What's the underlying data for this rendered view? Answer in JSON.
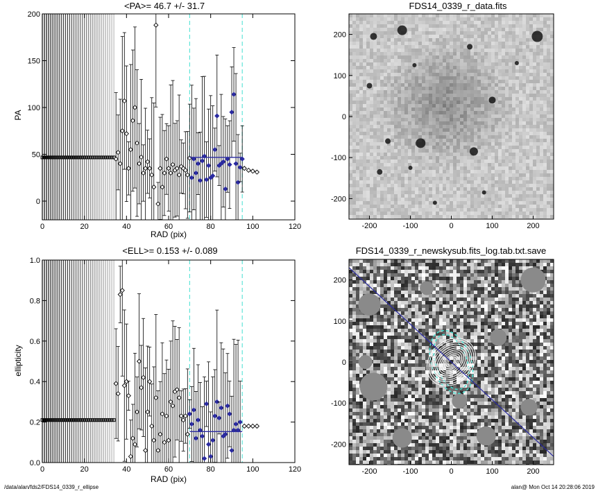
{
  "footer": {
    "left": "/data/alan/fds2/FDS14_0339_r_ellipse",
    "right": "alan@  Mon Oct 14 20:28:06 2019"
  },
  "colors": {
    "data_markers": "#000000",
    "fit_markers": "#2a2aa0",
    "mean_line": "#2a2aa0",
    "range_lines": "#40e0d0",
    "ellipse_outline": "#ffffff"
  },
  "chart_data": [
    {
      "type": "scatter",
      "title": "<PA>=  46.7 +/-  31.7",
      "xlabel": "RAD (pix)",
      "ylabel": "PA",
      "xlim": [
        0,
        120
      ],
      "ylim": [
        -20,
        200
      ],
      "xticks": [
        "0",
        "20",
        "40",
        "60",
        "80",
        "100",
        "120"
      ],
      "yticks": [
        "0",
        "50",
        "100",
        "150",
        "200"
      ],
      "inner_x": [
        0,
        1,
        2,
        3,
        4,
        5,
        6,
        7,
        8,
        9,
        10,
        11,
        12,
        13,
        14,
        15,
        16,
        17,
        18,
        19,
        20,
        21,
        22,
        23,
        24,
        25,
        26,
        27,
        28,
        29,
        30,
        31,
        32,
        33,
        34
      ],
      "inner_value": 46.7,
      "points": [
        {
          "x": 35,
          "y": 45
        },
        {
          "x": 36,
          "y": 52
        },
        {
          "x": 37,
          "y": 40
        },
        {
          "x": 38,
          "y": 75
        },
        {
          "x": 39,
          "y": 107
        },
        {
          "x": 40,
          "y": 72
        },
        {
          "x": 41,
          "y": 35
        },
        {
          "x": 42,
          "y": 55
        },
        {
          "x": 43,
          "y": 86
        },
        {
          "x": 44,
          "y": 100
        },
        {
          "x": 45,
          "y": 62
        },
        {
          "x": 46,
          "y": 40
        },
        {
          "x": 47,
          "y": 47
        },
        {
          "x": 48,
          "y": 30
        },
        {
          "x": 49,
          "y": 35
        },
        {
          "x": 50,
          "y": 42
        },
        {
          "x": 51,
          "y": 35
        },
        {
          "x": 52,
          "y": 28
        },
        {
          "x": 53,
          "y": 15
        },
        {
          "x": 54,
          "y": 188
        },
        {
          "x": 55,
          "y": -3
        },
        {
          "x": 56,
          "y": 35
        },
        {
          "x": 57,
          "y": 15
        },
        {
          "x": 58,
          "y": 30
        },
        {
          "x": 59,
          "y": 45
        },
        {
          "x": 60,
          "y": 35
        },
        {
          "x": 61,
          "y": 30
        },
        {
          "x": 62,
          "y": 39
        },
        {
          "x": 63,
          "y": 33
        },
        {
          "x": 64,
          "y": 35
        },
        {
          "x": 65,
          "y": 28
        },
        {
          "x": 66,
          "y": 37
        },
        {
          "x": 67,
          "y": 35
        },
        {
          "x": 68,
          "y": 33
        },
        {
          "x": 69,
          "y": 28
        },
        {
          "x": 70,
          "y": 46
        }
      ],
      "fit_points": [
        {
          "x": 71,
          "y": 25
        },
        {
          "x": 72,
          "y": 45
        },
        {
          "x": 73,
          "y": 30
        },
        {
          "x": 74,
          "y": 40
        },
        {
          "x": 75,
          "y": 22
        },
        {
          "x": 76,
          "y": 43
        },
        {
          "x": 77,
          "y": 48
        },
        {
          "x": 78,
          "y": 23
        },
        {
          "x": 79,
          "y": 38
        },
        {
          "x": 80,
          "y": 25
        },
        {
          "x": 81,
          "y": 27
        },
        {
          "x": 82,
          "y": 55
        },
        {
          "x": 83,
          "y": 91
        },
        {
          "x": 84,
          "y": 38
        },
        {
          "x": 85,
          "y": 40
        },
        {
          "x": 86,
          "y": 42
        },
        {
          "x": 87,
          "y": 13
        },
        {
          "x": 88,
          "y": 45
        },
        {
          "x": 89,
          "y": 39
        },
        {
          "x": 90,
          "y": 95
        },
        {
          "x": 91,
          "y": 114
        },
        {
          "x": 92,
          "y": 40
        },
        {
          "x": 93,
          "y": 20
        },
        {
          "x": 94,
          "y": 36
        },
        {
          "x": 95,
          "y": 45
        }
      ],
      "tail_points": [
        {
          "x": 96,
          "y": 35
        },
        {
          "x": 98,
          "y": 33
        },
        {
          "x": 100,
          "y": 32
        },
        {
          "x": 102,
          "y": 31
        }
      ],
      "mean_line": {
        "x0": 70,
        "x1": 95,
        "y": 46.7
      },
      "range_lines": [
        70,
        95
      ]
    },
    {
      "type": "image",
      "title": "FDS14_0339_r_data.fits",
      "xlim": [
        -250,
        250
      ],
      "ylim": [
        -250,
        250
      ],
      "xticks": [
        "-200",
        "-100",
        "0",
        "100",
        "200"
      ],
      "yticks": [
        "-200",
        "-100",
        "0",
        "100",
        "200"
      ]
    },
    {
      "type": "scatter",
      "title": "<ELL>= 0.153 +/-  0.089",
      "xlabel": "RAD (pix)",
      "ylabel": "ellipticity",
      "xlim": [
        0,
        120
      ],
      "ylim": [
        0.0,
        1.0
      ],
      "xticks": [
        "0",
        "20",
        "40",
        "60",
        "80",
        "100",
        "120"
      ],
      "yticks": [
        "0.0",
        "0.2",
        "0.4",
        "0.6",
        "0.8",
        "1.0"
      ],
      "inner_x": [
        0,
        1,
        2,
        3,
        4,
        5,
        6,
        7,
        8,
        9,
        10,
        11,
        12,
        13,
        14,
        15,
        16,
        17,
        18,
        19,
        20,
        21,
        22,
        23,
        24,
        25,
        26,
        27,
        28,
        29,
        30,
        31,
        32,
        33,
        34
      ],
      "inner_value": 0.21,
      "points": [
        {
          "x": 35,
          "y": 0.39
        },
        {
          "x": 36,
          "y": 0.34
        },
        {
          "x": 37,
          "y": 0.83
        },
        {
          "x": 38,
          "y": 0.85
        },
        {
          "x": 39,
          "y": 0.38
        },
        {
          "x": 40,
          "y": 0.4
        },
        {
          "x": 41,
          "y": 0.33
        },
        {
          "x": 42,
          "y": 0.03
        },
        {
          "x": 43,
          "y": 0.12
        },
        {
          "x": 44,
          "y": 0.09
        },
        {
          "x": 45,
          "y": 0.25
        },
        {
          "x": 46,
          "y": 0.5
        },
        {
          "x": 47,
          "y": 0.37
        },
        {
          "x": 48,
          "y": 0.42
        },
        {
          "x": 49,
          "y": 0.06
        },
        {
          "x": 50,
          "y": 0.25
        },
        {
          "x": 51,
          "y": 0.4
        },
        {
          "x": 52,
          "y": 0.18
        },
        {
          "x": 53,
          "y": 0.11
        },
        {
          "x": 54,
          "y": 0.32
        },
        {
          "x": 55,
          "y": 0.06
        },
        {
          "x": 56,
          "y": 0.14
        },
        {
          "x": 57,
          "y": 0.24
        },
        {
          "x": 58,
          "y": 0.1
        },
        {
          "x": 59,
          "y": 0.23
        },
        {
          "x": 60,
          "y": 0.11
        },
        {
          "x": 61,
          "y": 0.3
        },
        {
          "x": 62,
          "y": 0.28
        },
        {
          "x": 63,
          "y": 0.35
        },
        {
          "x": 64,
          "y": 0.36
        },
        {
          "x": 65,
          "y": 0.32
        },
        {
          "x": 66,
          "y": 0.23
        },
        {
          "x": 67,
          "y": 0.21
        },
        {
          "x": 68,
          "y": 0.23
        },
        {
          "x": 69,
          "y": 0.14
        }
      ],
      "fit_points": [
        {
          "x": 70,
          "y": 0.24
        },
        {
          "x": 71,
          "y": 0.19
        },
        {
          "x": 72,
          "y": 0.26
        },
        {
          "x": 73,
          "y": 0.12
        },
        {
          "x": 74,
          "y": 0.21
        },
        {
          "x": 75,
          "y": 0.16
        },
        {
          "x": 76,
          "y": 0.13
        },
        {
          "x": 77,
          "y": 0.02
        },
        {
          "x": 78,
          "y": 0.29
        },
        {
          "x": 79,
          "y": 0.09
        },
        {
          "x": 80,
          "y": 0.03
        },
        {
          "x": 81,
          "y": 0.11
        },
        {
          "x": 82,
          "y": 0.23
        },
        {
          "x": 83,
          "y": 0.3
        },
        {
          "x": 84,
          "y": 0.22
        },
        {
          "x": 85,
          "y": 0.27
        },
        {
          "x": 86,
          "y": 0.13
        },
        {
          "x": 87,
          "y": 0.14
        },
        {
          "x": 88,
          "y": 0.28
        },
        {
          "x": 89,
          "y": 0.24
        },
        {
          "x": 90,
          "y": 0.06
        },
        {
          "x": 91,
          "y": 0.16
        },
        {
          "x": 92,
          "y": 0.19
        },
        {
          "x": 93,
          "y": 0.16
        },
        {
          "x": 94,
          "y": 0.2
        }
      ],
      "tail_points": [
        {
          "x": 96,
          "y": 0.18
        },
        {
          "x": 98,
          "y": 0.18
        },
        {
          "x": 100,
          "y": 0.18
        },
        {
          "x": 102,
          "y": 0.18
        }
      ],
      "mean_line": {
        "x0": 70,
        "x1": 95,
        "y": 0.153
      },
      "range_lines": [
        70,
        95
      ]
    },
    {
      "type": "image",
      "title": "FDS14_0339_r_newskysub.fits_log.tab.txt.save",
      "xlim": [
        -250,
        250
      ],
      "ylim": [
        -250,
        250
      ],
      "xticks": [
        "-200",
        "-100",
        "0",
        "100",
        "200"
      ],
      "yticks": [
        "-200",
        "-100",
        "0",
        "100",
        "200"
      ],
      "pa_line": {
        "x0": -250,
        "y0": 230,
        "x1": 250,
        "y1": -230
      },
      "ellipses": [
        {
          "rx": 10,
          "ry": 6
        },
        {
          "rx": 15,
          "ry": 9
        },
        {
          "rx": 20,
          "ry": 12
        },
        {
          "rx": 25,
          "ry": 15
        },
        {
          "rx": 30,
          "ry": 19
        },
        {
          "rx": 35,
          "ry": 23
        },
        {
          "rx": 40,
          "ry": 28
        },
        {
          "rx": 45,
          "ry": 33
        },
        {
          "rx": 50,
          "ry": 38
        },
        {
          "rx": 55,
          "ry": 42
        },
        {
          "rx": 60,
          "ry": 48
        },
        {
          "rx": 65,
          "ry": 52
        }
      ],
      "range_ellipses": [
        {
          "rx": 38,
          "ry": 70
        },
        {
          "rx": 48,
          "ry": 80
        }
      ]
    }
  ]
}
